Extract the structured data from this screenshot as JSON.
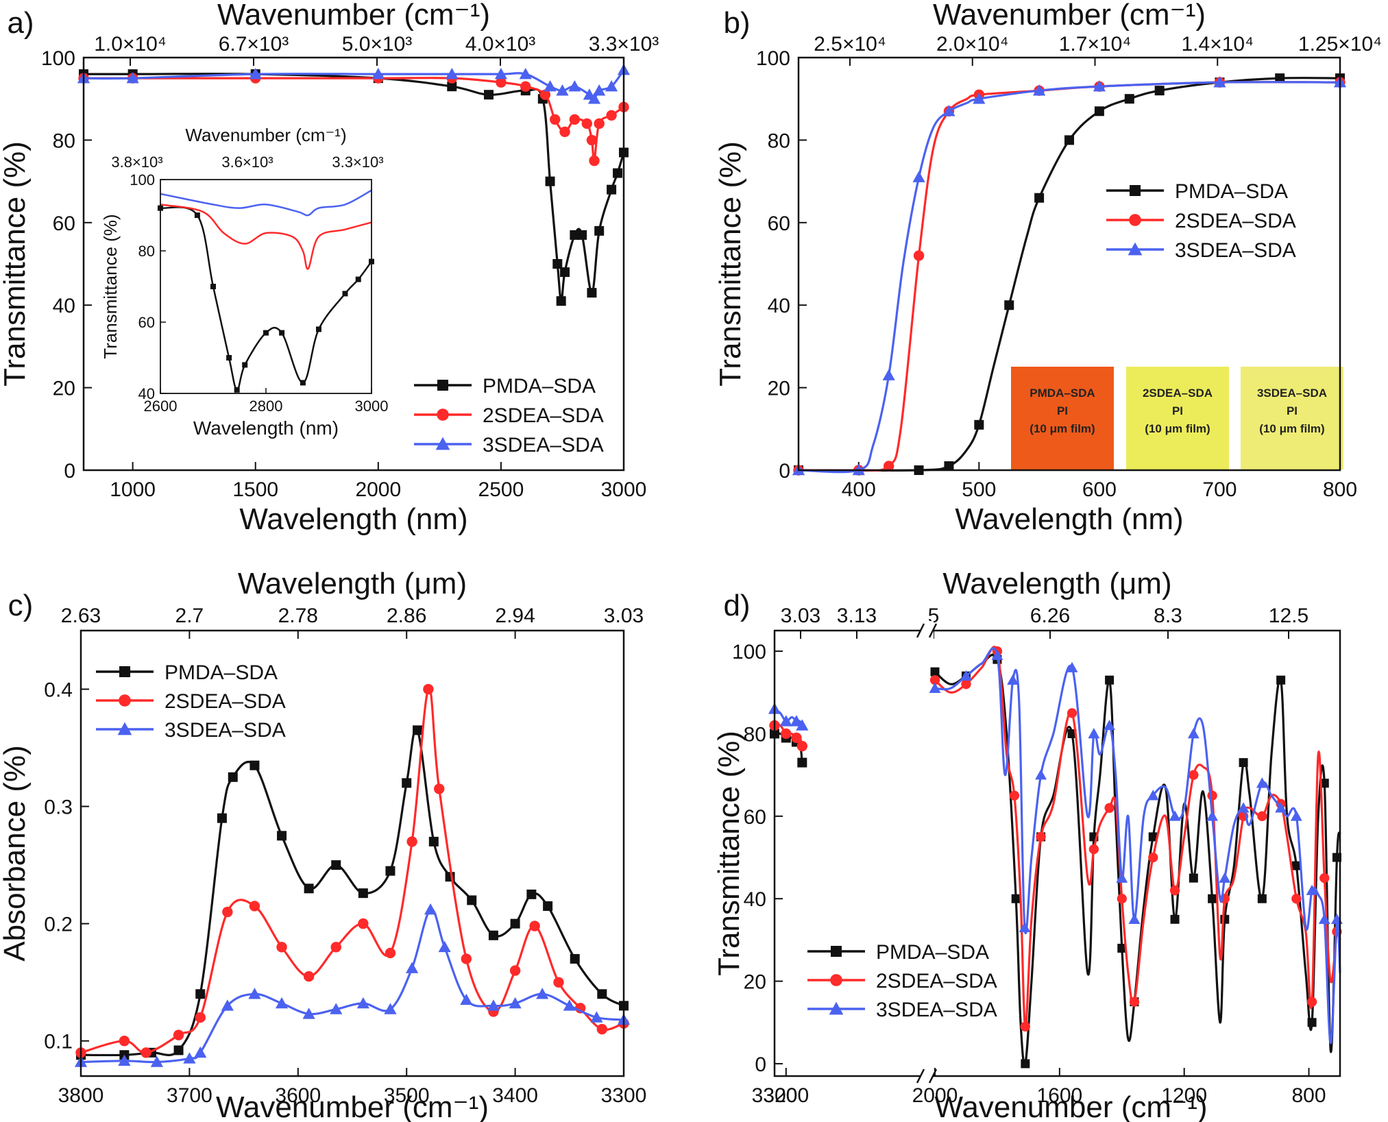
{
  "colors": {
    "pmda": "#111111",
    "s2": "#ff2a2a",
    "s3": "#4b62f0",
    "axis": "#111111"
  },
  "chart_data": [
    {
      "type": "line",
      "panel": "a)",
      "xlabel": "Wavelength (nm)",
      "ylabel": "Transmittance (%)",
      "top_label": "Wavenumber (cm⁻¹)",
      "xlim": [
        800,
        3000
      ],
      "ylim": [
        0,
        100
      ],
      "xticks": [
        "1000",
        "1500",
        "2000",
        "2500",
        "3000"
      ],
      "yticks": [
        "0",
        "20",
        "40",
        "60",
        "80",
        "100"
      ],
      "top_ticks": [
        "1.0×10⁴",
        "6.7×10³",
        "5.0×10³",
        "4.0×10³",
        "3.3×10³"
      ],
      "legend": [
        "PMDA–SDA",
        "2SDEA–SDA",
        "3SDEA–SDA"
      ],
      "series": [
        {
          "name": "PMDA–SDA",
          "x": [
            800,
            1000,
            1500,
            2000,
            2300,
            2450,
            2600,
            2670,
            2700,
            2730,
            2745,
            2760,
            2800,
            2830,
            2870,
            2900,
            2950,
            2975,
            3000
          ],
          "y": [
            96,
            96,
            96,
            95,
            93,
            91,
            92,
            90,
            70,
            50,
            41,
            48,
            57,
            57,
            43,
            58,
            68,
            72,
            77
          ]
        },
        {
          "name": "2SDEA–SDA",
          "x": [
            800,
            1000,
            1500,
            2000,
            2300,
            2500,
            2600,
            2680,
            2720,
            2760,
            2800,
            2850,
            2870,
            2880,
            2900,
            2950,
            3000
          ],
          "y": [
            95,
            95,
            95,
            95,
            95,
            94,
            93,
            91,
            85,
            82,
            85,
            84,
            80,
            75,
            84,
            86,
            88
          ]
        },
        {
          "name": "3SDEA–SDA",
          "x": [
            800,
            1000,
            1500,
            2000,
            2300,
            2500,
            2600,
            2700,
            2750,
            2800,
            2860,
            2880,
            2900,
            2950,
            3000
          ],
          "y": [
            95,
            95,
            96,
            96,
            96,
            96,
            96,
            93,
            92,
            93,
            91,
            90,
            92,
            93,
            97
          ]
        }
      ],
      "inset": {
        "xlabel": "Wavelength (nm)",
        "ylabel": "Transmittance (%)",
        "top_label": "Wavenumber (cm⁻¹)",
        "xlim": [
          2600,
          3000
        ],
        "ylim": [
          40,
          100
        ],
        "xticks": [
          "2600",
          "2800",
          "3000"
        ],
        "yticks": [
          "40",
          "60",
          "80",
          "100"
        ],
        "top_ticks": [
          "3.8×10³",
          "3.6×10³",
          "3.3×10³"
        ]
      }
    },
    {
      "type": "line",
      "panel": "b)",
      "xlabel": "Wavelength (nm)",
      "ylabel": "Transmittance (%)",
      "top_label": "Wavenumber (cm⁻¹)",
      "xlim": [
        350,
        800
      ],
      "ylim": [
        0,
        100
      ],
      "xticks": [
        "400",
        "500",
        "600",
        "700",
        "800"
      ],
      "yticks": [
        "0",
        "20",
        "40",
        "60",
        "80",
        "100"
      ],
      "top_ticks": [
        "2.5×10⁴",
        "2.0×10⁴",
        "1.7×10⁴",
        "1.4×10⁴",
        "1.25×10⁴"
      ],
      "legend": [
        "PMDA–SDA",
        "2SDEA–SDA",
        "3SDEA–SDA"
      ],
      "series": [
        {
          "name": "PMDA–SDA",
          "x": [
            350,
            450,
            475,
            490,
            500,
            512,
            525,
            540,
            550,
            575,
            600,
            625,
            650,
            700,
            750,
            800
          ],
          "y": [
            0,
            0,
            1,
            5,
            11,
            25,
            40,
            57,
            66,
            80,
            87,
            90,
            92,
            94,
            95,
            95
          ]
        },
        {
          "name": "2SDEA–SDA",
          "x": [
            350,
            400,
            425,
            435,
            450,
            462,
            475,
            490,
            500,
            550,
            600,
            700,
            800
          ],
          "y": [
            0,
            0,
            1,
            10,
            52,
            78,
            87,
            90,
            91,
            92,
            93,
            94,
            94
          ]
        },
        {
          "name": "3SDEA–SDA",
          "x": [
            350,
            400,
            412,
            425,
            437,
            450,
            462,
            475,
            490,
            500,
            550,
            600,
            700,
            800
          ],
          "y": [
            0,
            0,
            6,
            23,
            50,
            71,
            83,
            87,
            89,
            90,
            92,
            93,
            94,
            94
          ]
        }
      ],
      "film_labels": [
        {
          "line1": "PMDA–SDA",
          "line2": "PI",
          "line3": "(10 μm film)",
          "color": "#ee5a1a"
        },
        {
          "line1": "2SDEA–SDA",
          "line2": "PI",
          "line3": "(10 μm film)",
          "color": "#ecec5a"
        },
        {
          "line1": "3SDEA–SDA",
          "line2": "PI",
          "line3": "(10 μm film)",
          "color": "#eeec74"
        }
      ]
    },
    {
      "type": "line",
      "panel": "c)",
      "xlabel": "Wavenumber (cm⁻¹)",
      "ylabel": "Absorbance (%)",
      "top_label": "Wavelength (μm)",
      "xlim": [
        3800,
        3300
      ],
      "ylim": [
        0.07,
        0.45
      ],
      "xticks": [
        "3800",
        "3700",
        "3600",
        "3500",
        "3400",
        "3300"
      ],
      "yticks": [
        "0.1",
        "0.2",
        "0.3",
        "0.4"
      ],
      "top_ticks": [
        "2.63",
        "2.7",
        "2.78",
        "2.86",
        "2.94",
        "3.03"
      ],
      "legend": [
        "PMDA–SDA",
        "2SDEA–SDA",
        "3SDEA–SDA"
      ],
      "series": [
        {
          "name": "PMDA–SDA",
          "x": [
            3800,
            3760,
            3735,
            3710,
            3690,
            3670,
            3660,
            3640,
            3615,
            3590,
            3565,
            3540,
            3515,
            3500,
            3490,
            3475,
            3460,
            3440,
            3420,
            3400,
            3385,
            3370,
            3345,
            3320,
            3300
          ],
          "y": [
            0.088,
            0.088,
            0.09,
            0.092,
            0.14,
            0.29,
            0.325,
            0.335,
            0.275,
            0.23,
            0.25,
            0.226,
            0.245,
            0.32,
            0.365,
            0.27,
            0.24,
            0.22,
            0.19,
            0.2,
            0.225,
            0.215,
            0.17,
            0.14,
            0.13
          ]
        },
        {
          "name": "2SDEA–SDA",
          "x": [
            3800,
            3760,
            3740,
            3710,
            3690,
            3665,
            3640,
            3615,
            3590,
            3565,
            3540,
            3515,
            3495,
            3480,
            3470,
            3445,
            3420,
            3400,
            3382,
            3360,
            3340,
            3320,
            3300
          ],
          "y": [
            0.09,
            0.1,
            0.09,
            0.105,
            0.12,
            0.21,
            0.215,
            0.18,
            0.155,
            0.18,
            0.2,
            0.175,
            0.27,
            0.4,
            0.315,
            0.17,
            0.125,
            0.16,
            0.198,
            0.15,
            0.128,
            0.11,
            0.115
          ]
        },
        {
          "name": "3SDEA–SDA",
          "x": [
            3800,
            3760,
            3730,
            3700,
            3690,
            3665,
            3640,
            3615,
            3590,
            3565,
            3540,
            3515,
            3495,
            3478,
            3465,
            3445,
            3420,
            3400,
            3375,
            3350,
            3325,
            3300
          ],
          "y": [
            0.082,
            0.083,
            0.082,
            0.085,
            0.09,
            0.13,
            0.14,
            0.132,
            0.123,
            0.127,
            0.132,
            0.127,
            0.162,
            0.212,
            0.18,
            0.135,
            0.13,
            0.132,
            0.14,
            0.13,
            0.12,
            0.118
          ]
        }
      ]
    },
    {
      "type": "line",
      "panel": "d)",
      "xlabel": "Wavenumber (cm⁻¹)",
      "ylabel": "Transmittance (%)",
      "top_label": "Wavelength (μm)",
      "xlim_left": [
        3300,
        2050
      ],
      "xlim_right": [
        2000,
        700
      ],
      "ylim": [
        -3,
        105
      ],
      "xticks": [
        "3300",
        "3200",
        "2000",
        "1600",
        "1200",
        "800"
      ],
      "yticks": [
        "0",
        "20",
        "40",
        "60",
        "80",
        "100"
      ],
      "top_ticks": [
        "3.03",
        "3.13",
        "5",
        "6.26",
        "8.3",
        "12.5"
      ],
      "legend": [
        "PMDA–SDA",
        "2SDEA–SDA",
        "3SDEA–SDA"
      ],
      "series": [
        {
          "name": "PMDA–SDA",
          "x_left": [
            3300,
            3250,
            3200,
            3150,
            3110,
            3080,
            3060
          ],
          "y_left": [
            80,
            80,
            79,
            79,
            78,
            78,
            73
          ],
          "x_right": [
            2000,
            1950,
            1900,
            1850,
            1800,
            1770,
            1740,
            1725,
            1710,
            1690,
            1660,
            1620,
            1560,
            1510,
            1490,
            1470,
            1440,
            1420,
            1400,
            1380,
            1360,
            1330,
            1300,
            1260,
            1230,
            1200,
            1170,
            1140,
            1110,
            1085,
            1070,
            1040,
            1010,
            990,
            950,
            920,
            890,
            870,
            840,
            810,
            790,
            770,
            750,
            730,
            710,
            700
          ],
          "y_right": [
            95,
            92,
            94,
            97,
            98,
            80,
            40,
            10,
            0,
            20,
            55,
            65,
            80,
            22,
            55,
            70,
            93,
            60,
            28,
            6,
            15,
            38,
            55,
            67,
            35,
            63,
            45,
            66,
            40,
            10,
            35,
            48,
            73,
            65,
            40,
            75,
            93,
            60,
            48,
            22,
            10,
            60,
            68,
            3,
            50,
            56
          ]
        },
        {
          "name": "2SDEA–SDA",
          "x_left": [
            3300,
            3250,
            3200,
            3150,
            3110,
            3080,
            3060
          ],
          "y_left": [
            82,
            82,
            80,
            80,
            79,
            79,
            77
          ],
          "x_right": [
            2000,
            1950,
            1900,
            1850,
            1800,
            1770,
            1745,
            1725,
            1710,
            1690,
            1660,
            1620,
            1560,
            1510,
            1490,
            1470,
            1440,
            1420,
            1400,
            1380,
            1360,
            1330,
            1300,
            1260,
            1230,
            1200,
            1170,
            1140,
            1110,
            1085,
            1070,
            1040,
            1010,
            990,
            950,
            920,
            890,
            870,
            840,
            810,
            790,
            770,
            750,
            730,
            710,
            700
          ],
          "y_right": [
            93,
            90,
            92,
            96,
            100,
            75,
            65,
            40,
            9,
            35,
            55,
            63,
            85,
            45,
            52,
            58,
            62,
            63,
            40,
            22,
            15,
            35,
            50,
            60,
            42,
            55,
            70,
            72,
            65,
            26,
            40,
            45,
            60,
            62,
            60,
            65,
            63,
            55,
            40,
            32,
            15,
            75,
            45,
            20,
            32,
            30
          ]
        },
        {
          "name": "3SDEA–SDA",
          "x_left": [
            3300,
            3250,
            3200,
            3150,
            3110,
            3080,
            3060
          ],
          "y_left": [
            86,
            85,
            83,
            84,
            83,
            83,
            82
          ],
          "x_right": [
            2000,
            1950,
            1900,
            1850,
            1800,
            1775,
            1750,
            1730,
            1712,
            1690,
            1660,
            1620,
            1560,
            1510,
            1490,
            1470,
            1440,
            1420,
            1400,
            1380,
            1360,
            1330,
            1300,
            1260,
            1230,
            1200,
            1170,
            1140,
            1110,
            1085,
            1070,
            1040,
            1010,
            990,
            950,
            920,
            890,
            870,
            840,
            810,
            790,
            770,
            750,
            730,
            710,
            700
          ],
          "y_right": [
            91,
            91,
            94,
            97,
            99,
            70,
            93,
            88,
            33,
            50,
            70,
            80,
            96,
            60,
            80,
            75,
            82,
            70,
            45,
            60,
            35,
            60,
            65,
            67,
            60,
            62,
            80,
            82,
            60,
            40,
            45,
            58,
            62,
            58,
            68,
            65,
            62,
            60,
            60,
            33,
            42,
            41,
            35,
            5,
            35,
            22
          ]
        }
      ]
    }
  ]
}
